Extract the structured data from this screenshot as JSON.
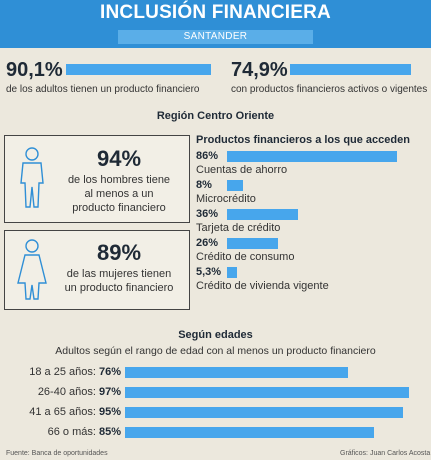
{
  "header": {
    "title": "INCLUSIÓN FINANCIERA",
    "subtitle": "SANTANDER"
  },
  "top_stats": [
    {
      "value": "90,1%",
      "text": "de los adultos tienen un producto financiero",
      "fraction": 0.901
    },
    {
      "value": "74,9%",
      "text": "con productos financieros activos o vigentes",
      "fraction": 0.749
    }
  ],
  "region": {
    "title": "Región Centro Oriente",
    "men": {
      "value": "94%",
      "line1": "de los hombres tiene",
      "line2": "al menos a un",
      "line3": "producto financiero"
    },
    "women": {
      "value": "89%",
      "line1": "de las mujeres tienen",
      "line2": "un producto financiero"
    }
  },
  "chart_data": [
    {
      "type": "bar",
      "title": "Productos financieros a los que acceden",
      "categories": [
        "Cuentas de ahorro",
        "Microcrédito",
        "Tarjeta de crédito",
        "Crédito de consumo",
        "Crédito de vivienda vigente"
      ],
      "values": [
        86,
        8,
        36,
        26,
        5.3
      ],
      "value_labels": [
        "86%",
        "8%",
        "36%",
        "26%",
        "5,3%"
      ],
      "xlim": [
        0,
        100
      ]
    },
    {
      "type": "bar",
      "title": "Según edades",
      "subtitle": "Adultos según el rango de edad con al menos un producto financiero",
      "categories": [
        "18 a 25 años:",
        "26-40 años:",
        "41 a 65 años:",
        "66 o más:"
      ],
      "values": [
        76,
        97,
        95,
        85
      ],
      "value_labels": [
        "76%",
        "97%",
        "95%",
        "85%"
      ],
      "xlim": [
        0,
        100
      ]
    }
  ],
  "footer": {
    "source": "Fuente: Banca de oportunidades",
    "credit": "Gráficos: Juan Carlos Acosta"
  },
  "colors": {
    "accent": "#47a6ec",
    "header": "#2f8fd6",
    "background": "#ece8dd"
  }
}
